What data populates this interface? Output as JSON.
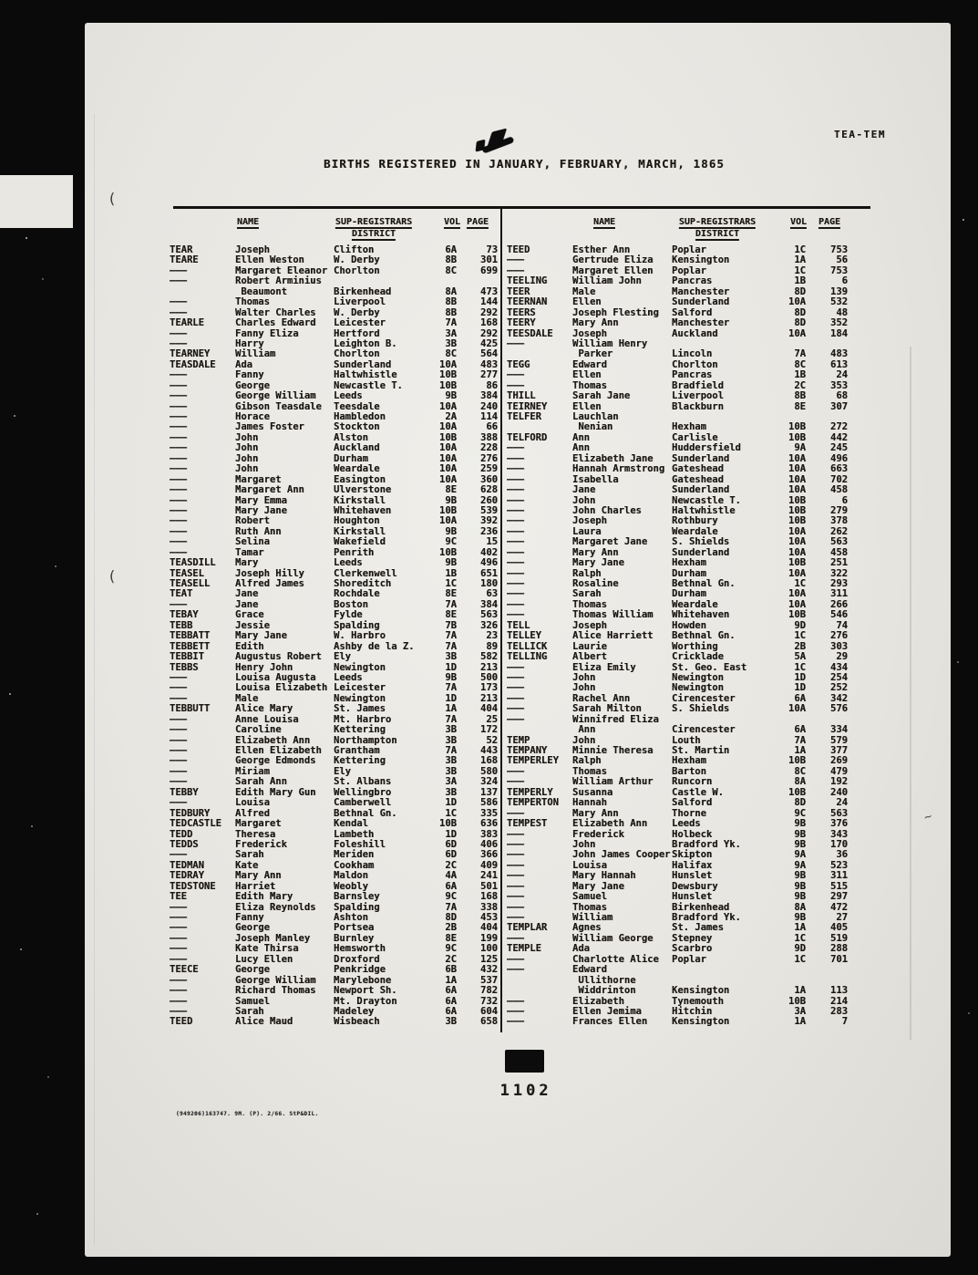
{
  "page_tag": "TEA-TEM",
  "title": "BIRTHS REGISTERED IN JANUARY, FEBRUARY, MARCH, 1865",
  "headers": {
    "name": "NAME",
    "sup_registrars": "SUP-REGISTRARS",
    "district": "DISTRICT",
    "vol": "VOL",
    "page": "PAGE"
  },
  "margin_marks": [
    "(",
    "(",
    "~"
  ],
  "page_number": "1102",
  "footnote": "(949206)163747. 9M. (P). 2/66. StP&DIL.",
  "left_column": [
    [
      "TEAR",
      "Joseph",
      "Clifton",
      "6A",
      "73"
    ],
    [
      "TEARE",
      "Ellen Weston",
      "W. Derby",
      "8B",
      "301"
    ],
    [
      "———",
      "Margaret Eleanor",
      "Chorlton",
      "8C",
      "699"
    ],
    [
      "———",
      "Robert Arminius",
      "",
      "",
      ""
    ],
    [
      "",
      " Beaumont",
      "Birkenhead",
      "8A",
      "473"
    ],
    [
      "———",
      "Thomas",
      "Liverpool",
      "8B",
      "144"
    ],
    [
      "———",
      "Walter Charles",
      "W. Derby",
      "8B",
      "292"
    ],
    [
      "TEARLE",
      "Charles Edward",
      "Leicester",
      "7A",
      "168"
    ],
    [
      "———",
      "Fanny Eliza",
      "Hertford",
      "3A",
      "292"
    ],
    [
      "———",
      "Harry",
      "Leighton B.",
      "3B",
      "425"
    ],
    [
      "TEARNEY",
      "William",
      "Chorlton",
      "8C",
      "564"
    ],
    [
      "TEASDALE",
      "Ada",
      "Sunderland",
      "10A",
      "483"
    ],
    [
      "———",
      "Fanny",
      "Haltwhistle",
      "10B",
      "277"
    ],
    [
      "———",
      "George",
      "Newcastle T.",
      "10B",
      "86"
    ],
    [
      "———",
      "George William",
      "Leeds",
      "9B",
      "384"
    ],
    [
      "———",
      "Gibson Teasdale",
      "Teesdale",
      "10A",
      "240"
    ],
    [
      "———",
      "Horace",
      "Hambledon",
      "2A",
      "114"
    ],
    [
      "———",
      "James Foster",
      "Stockton",
      "10A",
      "66"
    ],
    [
      "———",
      "John",
      "Alston",
      "10B",
      "388"
    ],
    [
      "———",
      "John",
      "Auckland",
      "10A",
      "228"
    ],
    [
      "———",
      "John",
      "Durham",
      "10A",
      "276"
    ],
    [
      "———",
      "John",
      "Weardale",
      "10A",
      "259"
    ],
    [
      "———",
      "Margaret",
      "Easington",
      "10A",
      "360"
    ],
    [
      "———",
      "Margaret Ann",
      "Ulverstone",
      "8E",
      "628"
    ],
    [
      "———",
      "Mary Emma",
      "Kirkstall",
      "9B",
      "260"
    ],
    [
      "———",
      "Mary Jane",
      "Whitehaven",
      "10B",
      "539"
    ],
    [
      "———",
      "Robert",
      "Houghton",
      "10A",
      "392"
    ],
    [
      "———",
      "Ruth Ann",
      "Kirkstall",
      "9B",
      "236"
    ],
    [
      "———",
      "Selina",
      "Wakefield",
      "9C",
      "15"
    ],
    [
      "———",
      "Tamar",
      "Penrith",
      "10B",
      "402"
    ],
    [
      "TEASDILL",
      "Mary",
      "Leeds",
      "9B",
      "496"
    ],
    [
      "TEASEL",
      "Joseph Hilly",
      "Clerkenwell",
      "1B",
      "651"
    ],
    [
      "TEASELL",
      "Alfred James",
      "Shoreditch",
      "1C",
      "180"
    ],
    [
      "TEAT",
      "Jane",
      "Rochdale",
      "8E",
      "63"
    ],
    [
      "———",
      "Jane",
      "Boston",
      "7A",
      "384"
    ],
    [
      "TEBAY",
      "Grace",
      "Fylde",
      "8E",
      "563"
    ],
    [
      "TEBB",
      "Jessie",
      "Spalding",
      "7B",
      "326"
    ],
    [
      "TEBBATT",
      "Mary Jane",
      "W. Harbro",
      "7A",
      "23"
    ],
    [
      "TEBBETT",
      "Edith",
      "Ashby de la Z.",
      "7A",
      "89"
    ],
    [
      "TEBBIT",
      "Augustus Robert",
      "Ely",
      "3B",
      "582"
    ],
    [
      "TEBBS",
      "Henry John",
      "Newington",
      "1D",
      "213"
    ],
    [
      "———",
      "Louisa Augusta",
      "Leeds",
      "9B",
      "500"
    ],
    [
      "———",
      "Louisa Elizabeth",
      "Leicester",
      "7A",
      "173"
    ],
    [
      "———",
      "Male",
      "Newington",
      "1D",
      "213"
    ],
    [
      "TEBBUTT",
      "Alice Mary",
      "St. James",
      "1A",
      "404"
    ],
    [
      "———",
      "Anne Louisa",
      "Mt. Harbro",
      "7A",
      "25"
    ],
    [
      "———",
      "Caroline",
      "Kettering",
      "3B",
      "172"
    ],
    [
      "———",
      "Elizabeth Ann",
      "Northampton",
      "3B",
      "52"
    ],
    [
      "———",
      "Ellen Elizabeth",
      "Grantham",
      "7A",
      "443"
    ],
    [
      "———",
      "George Edmonds",
      "Kettering",
      "3B",
      "168"
    ],
    [
      "———",
      "Miriam",
      "Ely",
      "3B",
      "580"
    ],
    [
      "———",
      "Sarah Ann",
      "St. Albans",
      "3A",
      "324"
    ],
    [
      "TEBBY",
      "Edith Mary Gun",
      "Wellingbro",
      "3B",
      "137"
    ],
    [
      "———",
      "Louisa",
      "Camberwell",
      "1D",
      "586"
    ],
    [
      "TEDBURY",
      "Alfred",
      "Bethnal Gn.",
      "1C",
      "335"
    ],
    [
      "TEDCASTLE",
      "Margaret",
      "Kendal",
      "10B",
      "636"
    ],
    [
      "TEDD",
      "Theresa",
      "Lambeth",
      "1D",
      "383"
    ],
    [
      "TEDDS",
      "Frederick",
      "Foleshill",
      "6D",
      "406"
    ],
    [
      "———",
      "Sarah",
      "Meriden",
      "6D",
      "366"
    ],
    [
      "TEDMAN",
      "Kate",
      "Cookham",
      "2C",
      "409"
    ],
    [
      "TEDRAY",
      "Mary Ann",
      "Maldon",
      "4A",
      "241"
    ],
    [
      "TEDSTONE",
      "Harriet",
      "Weobly",
      "6A",
      "501"
    ],
    [
      "TEE",
      "Edith Mary",
      "Barnsley",
      "9C",
      "168"
    ],
    [
      "———",
      "Eliza Reynolds",
      "Spalding",
      "7A",
      "338"
    ],
    [
      "———",
      "Fanny",
      "Ashton",
      "8D",
      "453"
    ],
    [
      "———",
      "George",
      "Portsea",
      "2B",
      "404"
    ],
    [
      "———",
      "Joseph Manley",
      "Burnley",
      "8E",
      "199"
    ],
    [
      "———",
      "Kate Thirsa",
      "Hemsworth",
      "9C",
      "100"
    ],
    [
      "———",
      "Lucy Ellen",
      "Droxford",
      "2C",
      "125"
    ],
    [
      "TEECE",
      "George",
      "Penkridge",
      "6B",
      "432"
    ],
    [
      "———",
      "George William",
      "Marylebone",
      "1A",
      "537"
    ],
    [
      "———",
      "Richard Thomas",
      "Newport Sh.",
      "6A",
      "782"
    ],
    [
      "———",
      "Samuel",
      "Mt. Drayton",
      "6A",
      "732"
    ],
    [
      "———",
      "Sarah",
      "Madeley",
      "6A",
      "604"
    ],
    [
      "TEED",
      "Alice Maud",
      "Wisbeach",
      "3B",
      "658"
    ]
  ],
  "right_column": [
    [
      "TEED",
      "Esther Ann",
      "Poplar",
      "1C",
      "753"
    ],
    [
      "———",
      "Gertrude Eliza",
      "Kensington",
      "1A",
      "56"
    ],
    [
      "———",
      "Margaret Ellen",
      "Poplar",
      "1C",
      "753"
    ],
    [
      "TEELING",
      "William John",
      "Pancras",
      "1B",
      "6"
    ],
    [
      "TEER",
      "Male",
      "Manchester",
      "8D",
      "139"
    ],
    [
      "TEERNAN",
      "Ellen",
      "Sunderland",
      "10A",
      "532"
    ],
    [
      "TEERS",
      "Joseph Flesting",
      "Salford",
      "8D",
      "48"
    ],
    [
      "TEERY",
      "Mary Ann",
      "Manchester",
      "8D",
      "352"
    ],
    [
      "TEESDALE",
      "Joseph",
      "Auckland",
      "10A",
      "184"
    ],
    [
      "———",
      "William Henry",
      "",
      "",
      ""
    ],
    [
      "",
      " Parker",
      "Lincoln",
      "7A",
      "483"
    ],
    [
      "TEGG",
      "Edward",
      "Chorlton",
      "8C",
      "613"
    ],
    [
      "———",
      "Ellen",
      "Pancras",
      "1B",
      "24"
    ],
    [
      "———",
      "Thomas",
      "Bradfield",
      "2C",
      "353"
    ],
    [
      "THILL",
      "Sarah Jane",
      "Liverpool",
      "8B",
      "68"
    ],
    [
      "TEIRNEY",
      "Ellen",
      "Blackburn",
      "8E",
      "307"
    ],
    [
      "TELFER",
      "Lauchlan",
      "",
      "",
      ""
    ],
    [
      "",
      " Nenian",
      "Hexham",
      "10B",
      "272"
    ],
    [
      "TELFORD",
      "Ann",
      "Carlisle",
      "10B",
      "442"
    ],
    [
      "———",
      "Ann",
      "Huddersfield",
      "9A",
      "245"
    ],
    [
      "———",
      "Elizabeth Jane",
      "Sunderland",
      "10A",
      "496"
    ],
    [
      "———",
      "Hannah Armstrong",
      "Gateshead",
      "10A",
      "663"
    ],
    [
      "———",
      "Isabella",
      "Gateshead",
      "10A",
      "702"
    ],
    [
      "———",
      "Jane",
      "Sunderland",
      "10A",
      "458"
    ],
    [
      "———",
      "John",
      "Newcastle T.",
      "10B",
      "6"
    ],
    [
      "———",
      "John Charles",
      "Haltwhistle",
      "10B",
      "279"
    ],
    [
      "———",
      "Joseph",
      "Rothbury",
      "10B",
      "378"
    ],
    [
      "———",
      "Laura",
      "Weardale",
      "10A",
      "262"
    ],
    [
      "———",
      "Margaret Jane",
      "S. Shields",
      "10A",
      "563"
    ],
    [
      "———",
      "Mary Ann",
      "Sunderland",
      "10A",
      "458"
    ],
    [
      "———",
      "Mary Jane",
      "Hexham",
      "10B",
      "251"
    ],
    [
      "———",
      "Ralph",
      "Durham",
      "10A",
      "322"
    ],
    [
      "———",
      "Rosaline",
      "Bethnal Gn.",
      "1C",
      "293"
    ],
    [
      "———",
      "Sarah",
      "Durham",
      "10A",
      "311"
    ],
    [
      "———",
      "Thomas",
      "Weardale",
      "10A",
      "266"
    ],
    [
      "———",
      "Thomas William",
      "Whitehaven",
      "10B",
      "546"
    ],
    [
      "TELL",
      "Joseph",
      "Howden",
      "9D",
      "74"
    ],
    [
      "TELLEY",
      "Alice Harriett",
      "Bethnal Gn.",
      "1C",
      "276"
    ],
    [
      "TELLICK",
      "Laurie",
      "Worthing",
      "2B",
      "303"
    ],
    [
      "TELLING",
      "Albert",
      "Cricklade",
      "5A",
      "29"
    ],
    [
      "———",
      "Eliza Emily",
      "St. Geo. East",
      "1C",
      "434"
    ],
    [
      "———",
      "John",
      "Newington",
      "1D",
      "254"
    ],
    [
      "———",
      "John",
      "Newington",
      "1D",
      "252"
    ],
    [
      "———",
      "Rachel Ann",
      "Cirencester",
      "6A",
      "342"
    ],
    [
      "———",
      "Sarah Milton",
      "S. Shields",
      "10A",
      "576"
    ],
    [
      "———",
      "Winnifred Eliza",
      "",
      "",
      ""
    ],
    [
      "",
      " Ann",
      "Cirencester",
      "6A",
      "334"
    ],
    [
      "TEMP",
      "John",
      "Louth",
      "7A",
      "579"
    ],
    [
      "TEMPANY",
      "Minnie Theresa",
      "St. Martin",
      "1A",
      "377"
    ],
    [
      "TEMPERLEY",
      "Ralph",
      "Hexham",
      "10B",
      "269"
    ],
    [
      "———",
      "Thomas",
      "Barton",
      "8C",
      "479"
    ],
    [
      "———",
      "William Arthur",
      "Runcorn",
      "8A",
      "192"
    ],
    [
      "TEMPERLY",
      "Susanna",
      "Castle W.",
      "10B",
      "240"
    ],
    [
      "TEMPERTON",
      "Hannah",
      "Salford",
      "8D",
      "24"
    ],
    [
      "———",
      "Mary Ann",
      "Thorne",
      "9C",
      "563"
    ],
    [
      "TEMPEST",
      "Elizabeth Ann",
      "Leeds",
      "9B",
      "376"
    ],
    [
      "———",
      "Frederick",
      "Holbeck",
      "9B",
      "343"
    ],
    [
      "———",
      "John",
      "Bradford Yk.",
      "9B",
      "170"
    ],
    [
      "———",
      "John James Cooper",
      "Skipton",
      "9A",
      "36"
    ],
    [
      "———",
      "Louisa",
      "Halifax",
      "9A",
      "523"
    ],
    [
      "———",
      "Mary Hannah",
      "Hunslet",
      "9B",
      "311"
    ],
    [
      "———",
      "Mary Jane",
      "Dewsbury",
      "9B",
      "515"
    ],
    [
      "———",
      "Samuel",
      "Hunslet",
      "9B",
      "297"
    ],
    [
      "———",
      "Thomas",
      "Birkenhead",
      "8A",
      "472"
    ],
    [
      "———",
      "William",
      "Bradford Yk.",
      "9B",
      "27"
    ],
    [
      "TEMPLAR",
      "Agnes",
      "St. James",
      "1A",
      "405"
    ],
    [
      "———",
      "William George",
      "Stepney",
      "1C",
      "519"
    ],
    [
      "TEMPLE",
      "Ada",
      "Scarbro",
      "9D",
      "288"
    ],
    [
      "———",
      "Charlotte Alice",
      "Poplar",
      "1C",
      "701"
    ],
    [
      "———",
      "Edward",
      "",
      "",
      ""
    ],
    [
      "",
      " Ullithorne",
      "",
      "",
      ""
    ],
    [
      "",
      " Widdrinton",
      "Kensington",
      "1A",
      "113"
    ],
    [
      "———",
      "Elizabeth",
      "Tynemouth",
      "10B",
      "214"
    ],
    [
      "———",
      "Ellen Jemima",
      "Hitchin",
      "3A",
      "283"
    ],
    [
      "———",
      "Frances Ellen",
      "Kensington",
      "1A",
      "7"
    ]
  ]
}
